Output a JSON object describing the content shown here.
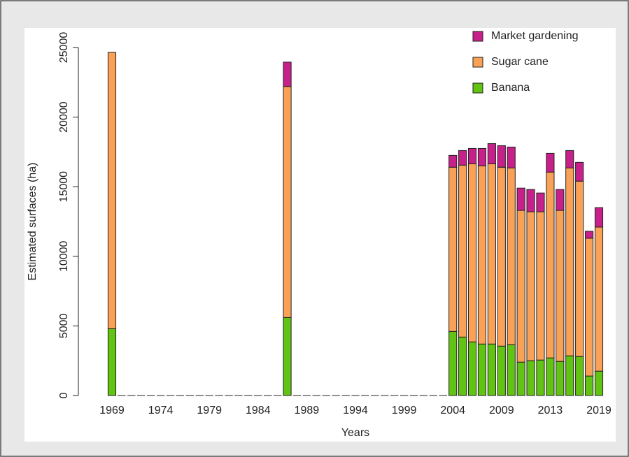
{
  "chart_data": {
    "type": "stacked_bar",
    "x_label": "Years",
    "y_label": "Estimated surfaces (ha)",
    "categories": [
      "1969",
      null,
      null,
      null,
      null,
      "1974",
      null,
      null,
      null,
      null,
      "1979",
      null,
      null,
      null,
      null,
      "1984",
      null,
      null,
      null,
      null,
      "1989",
      null,
      null,
      null,
      null,
      "1994",
      null,
      null,
      null,
      null,
      "1999",
      null,
      null,
      null,
      null,
      "2004",
      null,
      null,
      null,
      null,
      "2009",
      null,
      null,
      null,
      null,
      "2013",
      null,
      null,
      null,
      null,
      "2019"
    ],
    "series": [
      {
        "name": "Banana",
        "color": "#62c412",
        "values": [
          4800,
          0,
          0,
          0,
          0,
          0,
          0,
          0,
          0,
          0,
          0,
          0,
          0,
          0,
          0,
          0,
          0,
          0,
          5600,
          0,
          0,
          0,
          0,
          0,
          0,
          0,
          0,
          0,
          0,
          0,
          0,
          0,
          0,
          0,
          0,
          4600,
          4200,
          3850,
          3700,
          3700,
          3550,
          3650,
          2400,
          2500,
          2550,
          2700,
          2450,
          2850,
          2800,
          1400,
          1750
        ]
      },
      {
        "name": "Sugar cane",
        "color": "#f9a257",
        "values": [
          19850,
          0,
          0,
          0,
          0,
          0,
          0,
          0,
          0,
          0,
          0,
          0,
          0,
          0,
          0,
          0,
          0,
          0,
          16600,
          0,
          0,
          0,
          0,
          0,
          0,
          0,
          0,
          0,
          0,
          0,
          0,
          0,
          0,
          0,
          0,
          11800,
          12350,
          12800,
          12800,
          12950,
          12850,
          12700,
          10900,
          10700,
          10650,
          13350,
          10850,
          13500,
          12600,
          9900,
          10350
        ]
      },
      {
        "name": "Market gardening",
        "color": "#c8208a",
        "values": [
          0,
          0,
          0,
          0,
          0,
          0,
          0,
          0,
          0,
          0,
          0,
          0,
          0,
          0,
          0,
          0,
          0,
          0,
          1750,
          0,
          0,
          0,
          0,
          0,
          0,
          0,
          0,
          0,
          0,
          0,
          0,
          0,
          0,
          0,
          0,
          850,
          1050,
          1100,
          1250,
          1450,
          1550,
          1500,
          1600,
          1600,
          1350,
          1350,
          1500,
          1250,
          1350,
          500,
          1400
        ]
      }
    ],
    "ylim": [
      0,
      25000
    ],
    "yticks": [
      0,
      5000,
      10000,
      15000,
      20000,
      25000
    ],
    "legend": "top-right"
  }
}
